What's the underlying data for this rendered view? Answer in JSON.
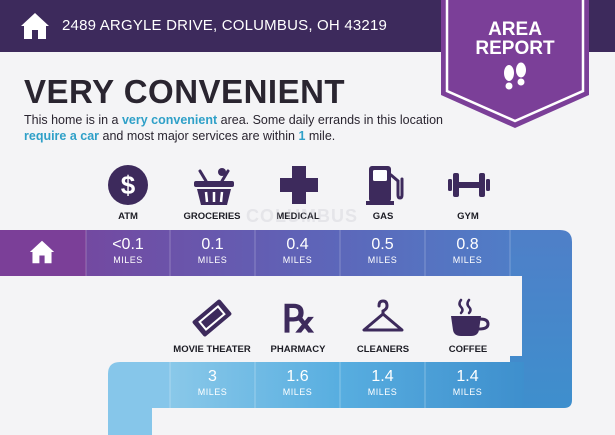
{
  "header": {
    "address": "2489 ARGYLE DRIVE, COLUMBUS, OH 43219",
    "badge_line1": "AREA",
    "badge_line2": "REPORT"
  },
  "summary": {
    "headline": "VERY CONVENIENT",
    "desc_part1": "This home is in a ",
    "desc_hl1": "very convenient",
    "desc_part2": " area. Some daily errands in this location ",
    "desc_hl2": "require a car",
    "desc_part3": " and most major services are within ",
    "desc_hl3": "1",
    "desc_part4": " mile."
  },
  "watermark": "COLUMBUS",
  "row1": [
    {
      "label": "ATM",
      "distance": "<0.1",
      "unit": "MILES",
      "icon": "dollar-icon"
    },
    {
      "label": "GROCERIES",
      "distance": "0.1",
      "unit": "MILES",
      "icon": "grocery-basket-icon"
    },
    {
      "label": "MEDICAL",
      "distance": "0.4",
      "unit": "MILES",
      "icon": "medical-cross-icon"
    },
    {
      "label": "GAS",
      "distance": "0.5",
      "unit": "MILES",
      "icon": "gas-pump-icon"
    },
    {
      "label": "GYM",
      "distance": "0.8",
      "unit": "MILES",
      "icon": "dumbbell-icon"
    }
  ],
  "row2": [
    {
      "label": "MOVIE THEATER",
      "distance": "3",
      "unit": "MILES",
      "icon": "ticket-icon"
    },
    {
      "label": "PHARMACY",
      "distance": "1.6",
      "unit": "MILES",
      "icon": "rx-icon"
    },
    {
      "label": "CLEANERS",
      "distance": "1.4",
      "unit": "MILES",
      "icon": "hanger-icon"
    },
    {
      "label": "COFFEE",
      "distance": "1.4",
      "unit": "MILES",
      "icon": "coffee-cup-icon"
    }
  ],
  "colors": {
    "header_bg": "#3d2a5c",
    "badge": "#7b3f98",
    "accent": "#2fa0c8",
    "row1_gradient": [
      "#7b3f98",
      "#5a78c4"
    ],
    "row2_gradient": [
      "#5ab0de",
      "#3f8fd0"
    ]
  }
}
